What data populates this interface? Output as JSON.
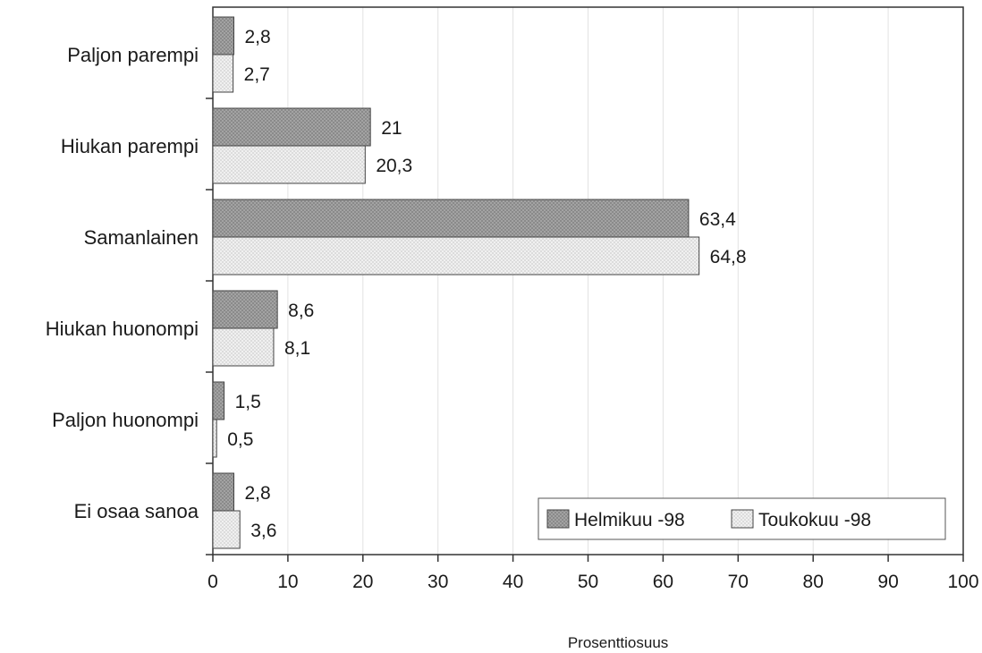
{
  "chart_data": {
    "type": "bar",
    "orientation": "horizontal",
    "categories": [
      "Paljon parempi",
      "Hiukan parempi",
      "Samanlainen",
      "Hiukan huonompi",
      "Paljon huonompi",
      "Ei osaa sanoa"
    ],
    "series": [
      {
        "name": "Helmikuu -98",
        "values": [
          2.8,
          21,
          63.4,
          8.6,
          1.5,
          2.8
        ],
        "labels": [
          "2,8",
          "21",
          "63,4",
          "8,6",
          "1,5",
          "2,8"
        ],
        "color": "#9a9a9a"
      },
      {
        "name": "Toukokuu -98",
        "values": [
          2.7,
          20.3,
          64.8,
          8.1,
          0.5,
          3.6
        ],
        "labels": [
          "2,7",
          "20,3",
          "64,8",
          "8,1",
          "0,5",
          "3,6"
        ],
        "color": "#ececec"
      }
    ],
    "xlabel": "Prosenttiosuus",
    "ylabel": "",
    "xlim": [
      0,
      100
    ],
    "xticks": [
      "0",
      "10",
      "20",
      "30",
      "40",
      "50",
      "60",
      "70",
      "80",
      "90",
      "100"
    ],
    "grid": "vertical",
    "legend": "bottom-right"
  }
}
